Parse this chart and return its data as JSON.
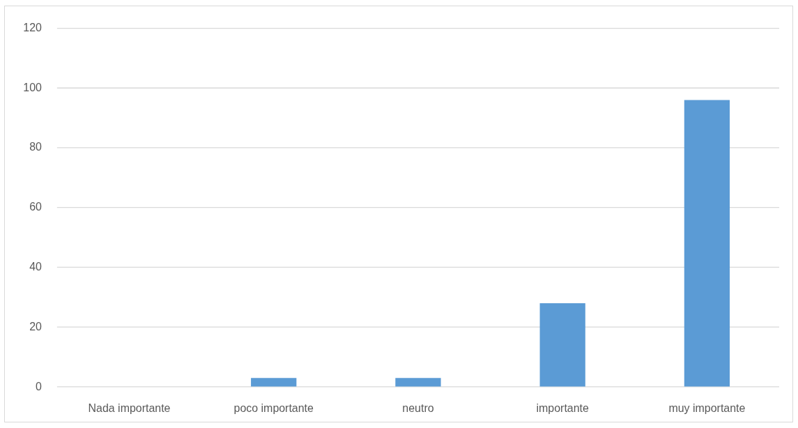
{
  "chart_data": {
    "type": "bar",
    "categories": [
      "Nada importante",
      "poco importante",
      "neutro",
      "importante",
      "muy importante"
    ],
    "values": [
      0,
      3,
      3,
      28,
      96
    ],
    "color": "#5b9bd5",
    "ylim": [
      0,
      120
    ],
    "yticks": [
      0,
      20,
      40,
      60,
      80,
      100,
      120
    ],
    "grid": "y"
  }
}
